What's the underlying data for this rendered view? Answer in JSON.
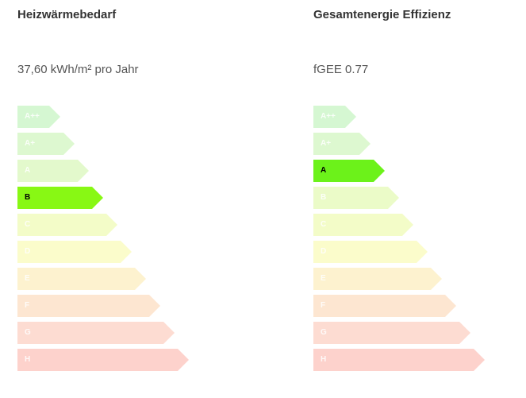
{
  "panels": [
    {
      "id": "heat",
      "title": "Heizwärmebedarf",
      "value": "37,60 kWh/m² pro Jahr",
      "active": "B"
    },
    {
      "id": "total",
      "title": "Gesamtenergie Effizienz",
      "value": "fGEE 0.77",
      "active": "A"
    }
  ],
  "classes": [
    {
      "label": "A++",
      "color": "#d5f7d2",
      "active_color": "#6cf21a"
    },
    {
      "label": "A+",
      "color": "#ddf8d0",
      "active_color": "#6cf21a"
    },
    {
      "label": "A",
      "color": "#e3f9cc",
      "active_color": "#6cf21a"
    },
    {
      "label": "B",
      "color": "#ebfbc8",
      "active_color": "#88f814"
    },
    {
      "label": "C",
      "color": "#f3fcc8",
      "active_color": "#c8f020"
    },
    {
      "label": "D",
      "color": "#fbfccb",
      "active_color": "#f0f020"
    },
    {
      "label": "E",
      "color": "#fdf2cf",
      "active_color": "#f8d040"
    },
    {
      "label": "F",
      "color": "#fde6d1",
      "active_color": "#f8a850"
    },
    {
      "label": "G",
      "color": "#fddcd2",
      "active_color": "#f88858"
    },
    {
      "label": "H",
      "color": "#fdd2cc",
      "active_color": "#f86050"
    }
  ]
}
